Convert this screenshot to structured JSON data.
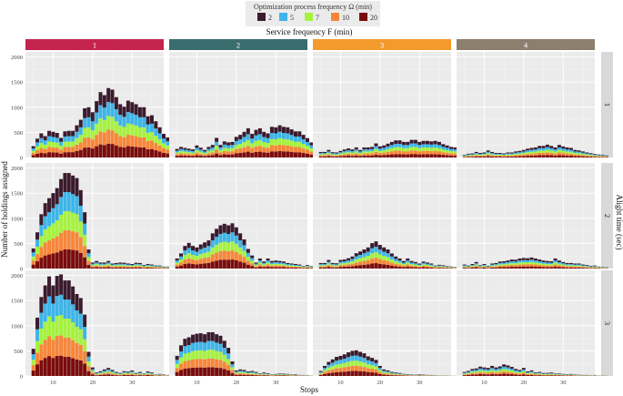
{
  "chart_data": {
    "type": "bar",
    "stacked": true,
    "legend": {
      "title": "Optimization process frequency Ω (min)",
      "position": "top",
      "entries": [
        {
          "label": "2",
          "color": "#3b1b2e"
        },
        {
          "label": "5",
          "color": "#3db5e8"
        },
        {
          "label": "7",
          "color": "#a6f23f"
        },
        {
          "label": "10",
          "color": "#f7863a"
        },
        {
          "label": "20",
          "color": "#7a0c0c"
        }
      ]
    },
    "col_facet_title": "Service frequency F (min)",
    "row_facet_title": "Alight time (sec)",
    "xlabel": "Stops",
    "ylabel": "Number of holdings assigned",
    "col_strips": [
      {
        "label": "1",
        "color": "#c4244d"
      },
      {
        "label": "2",
        "color": "#3a6e6e"
      },
      {
        "label": "3",
        "color": "#f39a2d"
      },
      {
        "label": "4",
        "color": "#8c7f6e"
      }
    ],
    "row_strips": [
      "1",
      "2",
      "3"
    ],
    "x_ticks": [
      10,
      20,
      30
    ],
    "x_range": [
      3,
      38
    ],
    "stops": [
      5,
      35
    ],
    "y_ticks": [
      0,
      500,
      1000,
      1500,
      2000
    ],
    "ylim": [
      0,
      2100
    ],
    "series_shares": [
      0.2,
      0.2,
      0.2,
      0.2,
      0.2
    ],
    "panels": [
      {
        "row": 1,
        "col": 1,
        "totals": [
          225,
          375,
          480,
          425,
          530,
          510,
          490,
          390,
          520,
          530,
          530,
          640,
          750,
          980,
          1000,
          900,
          1120,
          1300,
          1240,
          1380,
          1350,
          1200,
          1060,
          1010,
          1130,
          1100,
          1060,
          1000,
          1000,
          820,
          840,
          720,
          600,
          470,
          400,
          350,
          270
        ]
      },
      {
        "row": 1,
        "col": 2,
        "totals": [
          170,
          210,
          190,
          175,
          160,
          240,
          195,
          150,
          210,
          250,
          390,
          250,
          320,
          300,
          310,
          410,
          450,
          510,
          580,
          470,
          550,
          580,
          510,
          480,
          610,
          600,
          640,
          610,
          600,
          560,
          520,
          520,
          450,
          385,
          300,
          300,
          260
        ]
      },
      {
        "row": 1,
        "col": 3,
        "totals": [
          110,
          110,
          150,
          105,
          100,
          130,
          160,
          180,
          160,
          200,
          150,
          200,
          200,
          210,
          280,
          220,
          240,
          275,
          310,
          340,
          340,
          310,
          310,
          350,
          350,
          310,
          330,
          330,
          320,
          330,
          310,
          265,
          240,
          210,
          200,
          160,
          110
        ]
      },
      {
        "row": 1,
        "col": 4,
        "totals": [
          55,
          75,
          80,
          110,
          90,
          100,
          140,
          110,
          90,
          90,
          80,
          100,
          100,
          120,
          130,
          150,
          175,
          190,
          200,
          230,
          230,
          255,
          230,
          200,
          250,
          220,
          200,
          190,
          150,
          140,
          120,
          100,
          85,
          70,
          60,
          55,
          40
        ]
      },
      {
        "row": 2,
        "col": 1,
        "totals": [
          400,
          720,
          1080,
          1300,
          1400,
          1500,
          1600,
          1780,
          1900,
          1900,
          1850,
          1800,
          1560,
          1120,
          380,
          120,
          150,
          120,
          120,
          150,
          100,
          110,
          120,
          115,
          100,
          90,
          115,
          110,
          70,
          90,
          80,
          60,
          60,
          40,
          40,
          20,
          10
        ]
      },
      {
        "row": 2,
        "col": 2,
        "totals": [
          200,
          300,
          450,
          510,
          450,
          420,
          480,
          520,
          560,
          700,
          790,
          860,
          890,
          860,
          900,
          820,
          700,
          580,
          390,
          260,
          120,
          200,
          140,
          200,
          150,
          160,
          150,
          140,
          110,
          100,
          90,
          80,
          50,
          70,
          50,
          30,
          25
        ]
      },
      {
        "row": 2,
        "col": 3,
        "totals": [
          110,
          110,
          170,
          110,
          105,
          170,
          180,
          205,
          240,
          305,
          340,
          380,
          420,
          505,
          540,
          470,
          420,
          380,
          300,
          240,
          200,
          150,
          200,
          150,
          130,
          100,
          140,
          120,
          100,
          60,
          75,
          65,
          50,
          40,
          30,
          25,
          20
        ]
      },
      {
        "row": 2,
        "col": 4,
        "totals": [
          80,
          60,
          90,
          130,
          65,
          90,
          55,
          100,
          110,
          140,
          145,
          160,
          180,
          175,
          200,
          210,
          205,
          220,
          200,
          180,
          160,
          150,
          145,
          200,
          160,
          130,
          110,
          110,
          100,
          100,
          80,
          70,
          55,
          60,
          40,
          30,
          25
        ]
      },
      {
        "row": 3,
        "col": 1,
        "totals": [
          540,
          1160,
          1570,
          1800,
          1980,
          1800,
          1990,
          2020,
          1900,
          1900,
          1780,
          1630,
          1550,
          1220,
          480,
          170,
          70,
          95,
          130,
          160,
          120,
          80,
          60,
          95,
          85,
          110,
          60,
          80,
          45,
          90,
          70,
          30,
          40,
          30,
          20,
          10,
          5
        ]
      },
      {
        "row": 3,
        "col": 2,
        "totals": [
          400,
          610,
          740,
          770,
          820,
          840,
          850,
          830,
          870,
          870,
          830,
          800,
          700,
          560,
          290,
          110,
          130,
          120,
          90,
          100,
          80,
          50,
          70,
          55,
          30,
          40,
          50,
          45,
          40,
          30,
          35,
          20,
          20,
          15,
          10,
          10,
          5
        ]
      },
      {
        "row": 3,
        "col": 3,
        "totals": [
          100,
          200,
          280,
          330,
          380,
          400,
          430,
          470,
          500,
          510,
          480,
          450,
          390,
          360,
          320,
          200,
          130,
          110,
          80,
          70,
          60,
          40,
          35,
          30,
          25,
          35,
          30,
          20,
          20,
          15,
          10,
          10,
          10,
          5,
          5,
          5,
          5
        ]
      },
      {
        "row": 3,
        "col": 4,
        "totals": [
          80,
          100,
          140,
          150,
          185,
          170,
          160,
          200,
          170,
          190,
          230,
          210,
          180,
          140,
          120,
          160,
          90,
          110,
          70,
          80,
          60,
          60,
          70,
          50,
          50,
          40,
          35,
          40,
          30,
          25,
          20,
          20,
          15,
          20,
          10,
          10,
          5
        ]
      }
    ]
  }
}
